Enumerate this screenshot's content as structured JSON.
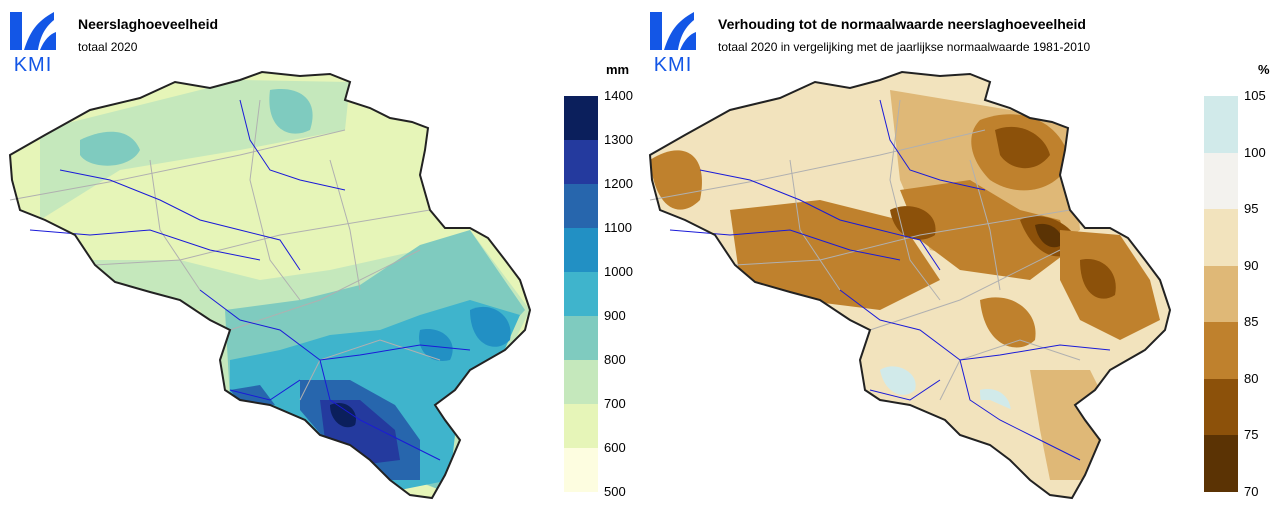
{
  "left": {
    "logo_text": "KMI",
    "title": "Neerslaghoeveelheid",
    "subtitle": "totaal 2020",
    "unit": "mm",
    "legend": {
      "labels": [
        "1400",
        "1300",
        "1200",
        "1100",
        "1000",
        "900",
        "800",
        "700",
        "600",
        "500"
      ],
      "colors": [
        "#0b1f5c",
        "#243a9e",
        "#2766ad",
        "#2290c4",
        "#3fb4cc",
        "#7fcbbf",
        "#c5e8bc",
        "#e6f5b8",
        "#fdfde0"
      ]
    }
  },
  "right": {
    "logo_text": "KMI",
    "title": "Verhouding tot de normaalwaarde neerslaghoeveelheid",
    "subtitle": "totaal 2020 in vergelijking met de jaarlijkse normaalwaarde 1981-2010",
    "unit": "%",
    "legend": {
      "labels": [
        "105",
        "100",
        "95",
        "90",
        "85",
        "80",
        "75",
        "70"
      ],
      "colors": [
        "#d1eaea",
        "#f3f2ee",
        "#f2e3bd",
        "#dfb877",
        "#bf812d",
        "#8c510a",
        "#5b3304"
      ]
    }
  },
  "colors": {
    "kmi_blue": "#1356e6",
    "border": "#222222",
    "rivers": "#1a1ad8",
    "admin": "#b0b0b0"
  }
}
